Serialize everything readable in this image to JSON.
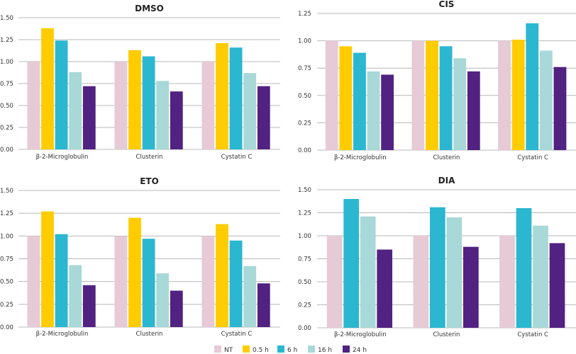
{
  "legend": {
    "items": [
      {
        "label": "NT",
        "color": "#e6cad6"
      },
      {
        "label": "0.5 h",
        "color": "#ffcc00"
      },
      {
        "label": "6 h",
        "color": "#2bb7d0"
      },
      {
        "label": "16 h",
        "color": "#a8d8d7"
      },
      {
        "label": "24 h",
        "color": "#512281"
      }
    ],
    "placement": "bottom"
  },
  "chart_data": [
    {
      "type": "bar",
      "title": "DMSO",
      "categories": [
        "β-2-Microglobulin",
        "Clusterin",
        "Cystatin C"
      ],
      "ylim": [
        0,
        1.5
      ],
      "yticks": [
        "0.00",
        "0.25",
        "0.50",
        "0.75",
        "1.00",
        "1.25",
        "1.50"
      ],
      "grid": true,
      "series": [
        {
          "name": "NT",
          "values": [
            1.0,
            1.0,
            1.0
          ]
        },
        {
          "name": "0.5 h",
          "values": [
            1.38,
            1.13,
            1.21
          ]
        },
        {
          "name": "6 h",
          "values": [
            1.24,
            1.06,
            1.16
          ]
        },
        {
          "name": "16 h",
          "values": [
            0.88,
            0.78,
            0.87
          ]
        },
        {
          "name": "24 h",
          "values": [
            0.72,
            0.66,
            0.72
          ]
        }
      ]
    },
    {
      "type": "bar",
      "title": "CIS",
      "categories": [
        "β-2-Microglobulin",
        "Clusterin",
        "Cystatin C"
      ],
      "ylim": [
        0,
        1.25
      ],
      "yticks": [
        "0.00",
        "0.25",
        "0.50",
        "0.75",
        "1.00",
        "1.25"
      ],
      "grid": true,
      "series": [
        {
          "name": "NT",
          "values": [
            1.0,
            1.0,
            1.0
          ]
        },
        {
          "name": "0.5 h",
          "values": [
            0.95,
            1.0,
            1.01
          ]
        },
        {
          "name": "6 h",
          "values": [
            0.89,
            0.95,
            1.16
          ]
        },
        {
          "name": "16 h",
          "values": [
            0.72,
            0.84,
            0.91
          ]
        },
        {
          "name": "24 h",
          "values": [
            0.69,
            0.72,
            0.76
          ]
        }
      ]
    },
    {
      "type": "bar",
      "title": "ETO",
      "categories": [
        "β-2-Microglobulin",
        "Clusterin",
        "Cystatin C"
      ],
      "ylim": [
        0,
        1.5
      ],
      "yticks": [
        "0.00",
        "0.25",
        "0.50",
        "0.75",
        "1.00",
        "1.25",
        "1.50"
      ],
      "grid": true,
      "series": [
        {
          "name": "NT",
          "values": [
            1.0,
            1.0,
            1.0
          ]
        },
        {
          "name": "0.5 h",
          "values": [
            1.27,
            1.2,
            1.13
          ]
        },
        {
          "name": "6 h",
          "values": [
            1.02,
            0.97,
            0.95
          ]
        },
        {
          "name": "16 h",
          "values": [
            0.68,
            0.59,
            0.67
          ]
        },
        {
          "name": "24 h",
          "values": [
            0.46,
            0.4,
            0.48
          ]
        }
      ]
    },
    {
      "type": "bar",
      "title": "DIA",
      "categories": [
        "β-2-Microglobulin",
        "Clusterin",
        "Cystatin C"
      ],
      "ylim": [
        0,
        1.5
      ],
      "yticks": [
        "0.00",
        "0.25",
        "0.50",
        "0.75",
        "1.00",
        "1.25",
        "1.50"
      ],
      "grid": true,
      "series": [
        {
          "name": "NT",
          "values": [
            1.0,
            1.0,
            1.0
          ]
        },
        {
          "name": "6 h",
          "values": [
            1.4,
            1.31,
            1.3
          ]
        },
        {
          "name": "16 h",
          "values": [
            1.21,
            1.2,
            1.11
          ]
        },
        {
          "name": "24 h",
          "values": [
            0.85,
            0.88,
            0.92
          ]
        }
      ]
    }
  ]
}
